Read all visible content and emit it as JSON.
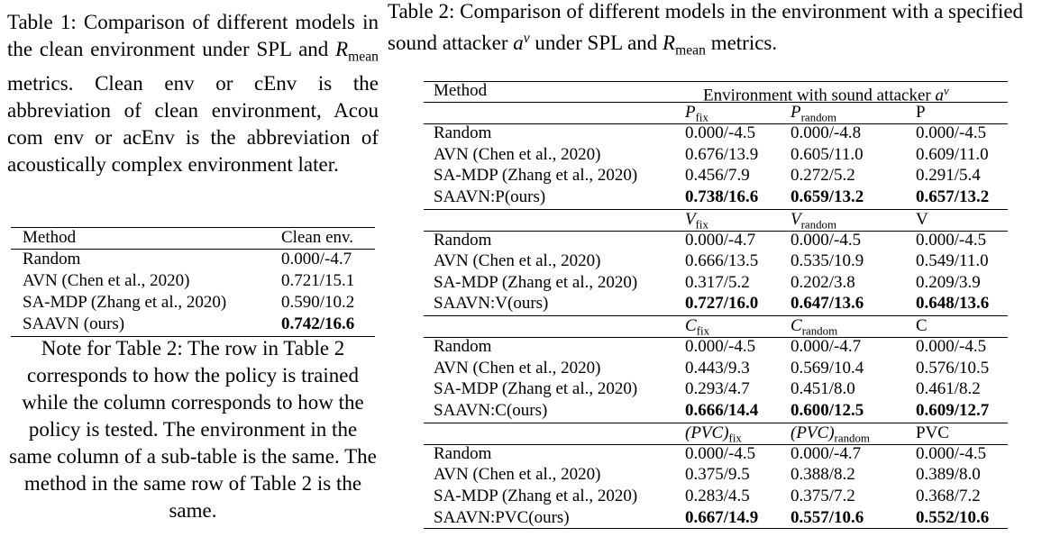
{
  "table1": {
    "caption": [
      {
        "text": "Table 1:  Comparison of different models in the clean environment under SPL and ",
        "style": "normal"
      },
      {
        "text": "R",
        "style": "italic"
      },
      {
        "text": "mean",
        "style": "sub"
      },
      {
        "text": " metrics. Clean env or cEnv is the abbreviation of clean environment, Acou com env or acEnv is the abbreviation of acoustically complex environment later.",
        "style": "normal"
      }
    ],
    "header": [
      "Method",
      "Clean env."
    ],
    "rows": [
      [
        "Random",
        "0.000/-4.7"
      ],
      [
        "AVN (Chen et al., 2020)",
        "0.721/15.1"
      ],
      [
        "SA-MDP (Zhang et al., 2020)",
        "0.590/10.2"
      ],
      [
        "SAAVN (ours)",
        "0.742/16.6"
      ]
    ],
    "bold_row": 3
  },
  "note": "Note for Table 2: The row in Table 2 corresponds to how the policy is trained while the column corresponds to how the policy is tested. The environment in the same column of a sub-table is the same. The method in the same row of Table 2 is the same.",
  "table2": {
    "caption": [
      {
        "text": "Table 2: Comparison of different models in the environment with a specified sound attacker ",
        "style": "normal"
      },
      {
        "text": "a",
        "style": "italic"
      },
      {
        "text": "ν",
        "style": "sup"
      },
      {
        "text": " under SPL and ",
        "style": "normal"
      },
      {
        "text": "R",
        "style": "italic"
      },
      {
        "text": "mean",
        "style": "sub"
      },
      {
        "text": " metrics.",
        "style": "normal"
      }
    ],
    "header": {
      "method": "Method",
      "environment": "Environment with sound attacker ",
      "symbol": "a",
      "sup": "ν"
    },
    "sections": [
      {
        "columns": [
          {
            "symbol": "P",
            "sub": "fix"
          },
          {
            "symbol": "P",
            "sub": "random"
          },
          {
            "symbol": "P"
          }
        ],
        "rows": [
          [
            "Random",
            "0.000/-4.5",
            "0.000/-4.8",
            "0.000/-4.5"
          ],
          [
            "AVN (Chen et al., 2020)",
            "0.676/13.9",
            "0.605/11.0",
            "0.609/11.0"
          ],
          [
            "SA-MDP (Zhang et al., 2020)",
            "0.456/7.9",
            "0.272/5.2",
            "0.291/5.4"
          ],
          [
            "SAAVN:P(ours)",
            "0.738/16.6",
            "0.659/13.2",
            "0.657/13.2"
          ]
        ],
        "bold_row": 3
      },
      {
        "columns": [
          {
            "symbol": "V",
            "sub": "fix"
          },
          {
            "symbol": "V",
            "sub": "random"
          },
          {
            "symbol": "V"
          }
        ],
        "rows": [
          [
            "Random",
            "0.000/-4.7",
            "0.000/-4.5",
            "0.000/-4.5"
          ],
          [
            "AVN (Chen et al., 2020)",
            "0.666/13.5",
            "0.535/10.9",
            "0.549/11.0"
          ],
          [
            "SA-MDP (Zhang et al., 2020)",
            "0.317/5.2",
            "0.202/3.8",
            "0.209/3.9"
          ],
          [
            "SAAVN:V(ours)",
            "0.727/16.0",
            "0.647/13.6",
            "0.648/13.6"
          ]
        ],
        "bold_row": 3
      },
      {
        "columns": [
          {
            "symbol": "C",
            "sub": "fix"
          },
          {
            "symbol": "C",
            "sub": "random"
          },
          {
            "symbol": "C"
          }
        ],
        "rows": [
          [
            "Random",
            "0.000/-4.5",
            "0.000/-4.7",
            "0.000/-4.5"
          ],
          [
            "AVN (Chen et al., 2020)",
            "0.443/9.3",
            "0.569/10.4",
            "0.576/10.5"
          ],
          [
            "SA-MDP (Zhang et al., 2020)",
            "0.293/4.7",
            "0.451/8.0",
            "0.461/8.2"
          ],
          [
            "SAAVN:C(ours)",
            "0.666/14.4",
            "0.600/12.5",
            "0.609/12.7"
          ]
        ],
        "bold_row": 3
      },
      {
        "columns": [
          {
            "symbol": "(PVC)",
            "sub": "fix"
          },
          {
            "symbol": "(PVC)",
            "sub": "random"
          },
          {
            "symbol": "PVC"
          }
        ],
        "rows": [
          [
            "Random",
            "0.000/-4.5",
            "0.000/-4.7",
            "0.000/-4.5"
          ],
          [
            "AVN (Chen et al., 2020)",
            "0.375/9.5",
            "0.388/8.2",
            "0.389/8.0"
          ],
          [
            "SA-MDP (Zhang et al., 2020)",
            "0.283/4.5",
            "0.375/7.2",
            "0.368/7.2"
          ],
          [
            "SAAVN:PVC(ours)",
            "0.667/14.9",
            "0.557/10.6",
            "0.552/10.6"
          ]
        ],
        "bold_row": 3
      }
    ]
  }
}
